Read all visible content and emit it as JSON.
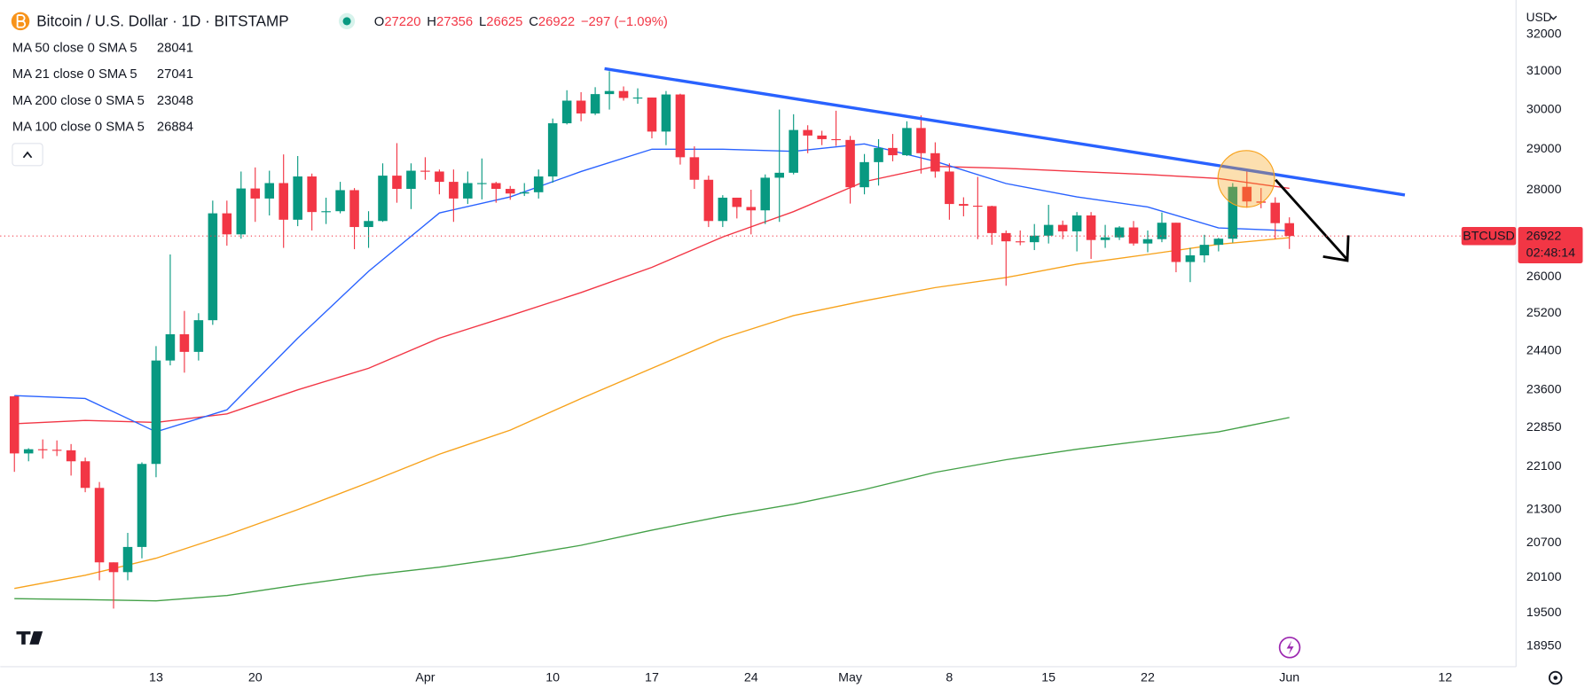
{
  "header": {
    "title": "Bitcoin / U.S. Dollar · 1D · BITSTAMP",
    "ohlc_labels": [
      "O",
      "H",
      "L",
      "C"
    ],
    "change": "−297 (−1.09%)",
    "currency": "USD"
  },
  "chart_data": {
    "type": "candlestick",
    "log": true,
    "grid": false,
    "price_line": true,
    "countdown": "02:48:14",
    "ylim": [
      18620,
      32950
    ],
    "yticks": [
      18950,
      19500,
      20100,
      20700,
      21300,
      22100,
      22850,
      23600,
      24400,
      25200,
      26000,
      27000,
      28000,
      29000,
      30000,
      31000,
      32000
    ],
    "xlim": [
      "03-02",
      "06-17"
    ],
    "xticks": [
      {
        "value": "03-13",
        "label": "13"
      },
      {
        "value": "03-20",
        "label": "20"
      },
      {
        "value": "04-01",
        "label": "Apr"
      },
      {
        "value": "04-10",
        "label": "10"
      },
      {
        "value": "04-17",
        "label": "17"
      },
      {
        "value": "04-24",
        "label": "24"
      },
      {
        "value": "05-01",
        "label": "May"
      },
      {
        "value": "05-08",
        "label": "8"
      },
      {
        "value": "05-15",
        "label": "15"
      },
      {
        "value": "05-22",
        "label": "22"
      },
      {
        "value": "06-01",
        "label": "Jun"
      },
      {
        "value": "06-12",
        "label": "12"
      }
    ],
    "x": [
      "03-03",
      "03-04",
      "03-05",
      "03-06",
      "03-07",
      "03-08",
      "03-09",
      "03-10",
      "03-11",
      "03-12",
      "03-13",
      "03-14",
      "03-15",
      "03-16",
      "03-17",
      "03-18",
      "03-19",
      "03-20",
      "03-21",
      "03-22",
      "03-23",
      "03-24",
      "03-25",
      "03-26",
      "03-27",
      "03-28",
      "03-29",
      "03-30",
      "03-31",
      "04-01",
      "04-02",
      "04-03",
      "04-04",
      "04-05",
      "04-06",
      "04-07",
      "04-08",
      "04-09",
      "04-10",
      "04-11",
      "04-12",
      "04-13",
      "04-14",
      "04-15",
      "04-16",
      "04-17",
      "04-18",
      "04-19",
      "04-20",
      "04-21",
      "04-22",
      "04-23",
      "04-24",
      "04-25",
      "04-26",
      "04-27",
      "04-28",
      "04-29",
      "04-30",
      "05-01",
      "05-02",
      "05-03",
      "05-04",
      "05-05",
      "05-06",
      "05-07",
      "05-08",
      "05-09",
      "05-10",
      "05-11",
      "05-12",
      "05-13",
      "05-14",
      "05-15",
      "05-16",
      "05-17",
      "05-18",
      "05-19",
      "05-20",
      "05-21",
      "05-22",
      "05-23",
      "05-24",
      "05-25",
      "05-26",
      "05-27",
      "05-28",
      "05-29",
      "05-30",
      "05-31",
      "06-01"
    ],
    "series": [
      {
        "name": "BTCUSD",
        "type": "candlestick",
        "up_color": "#089981",
        "down_color": "#f23645",
        "open": [
          23470,
          22350,
          22430,
          22420,
          22410,
          22200,
          21700,
          20360,
          20190,
          20630,
          22150,
          24200,
          24750,
          24380,
          25050,
          27450,
          26960,
          28040,
          27800,
          28170,
          27300,
          28330,
          27480,
          27500,
          28000,
          27130,
          27270,
          28350,
          28030,
          28470,
          28450,
          28200,
          27800,
          28170,
          28170,
          28030,
          27920,
          27950,
          28330,
          29650,
          30230,
          29900,
          30400,
          30480,
          30300,
          30310,
          29440,
          30390,
          28800,
          28250,
          27270,
          27820,
          27600,
          27520,
          28300,
          28420,
          29480,
          29340,
          29250,
          29230,
          28070,
          28680,
          29030,
          28850,
          29530,
          28900,
          28450,
          27670,
          27630,
          27620,
          26990,
          26800,
          26780,
          26930,
          27180,
          27030,
          27400,
          26830,
          26890,
          27120,
          26750,
          26850,
          27230,
          26330,
          26480,
          26720,
          26860,
          28080,
          27730,
          27700,
          27220
        ],
        "high": [
          23480,
          22450,
          22620,
          22600,
          22530,
          22270,
          21810,
          20360,
          20880,
          22180,
          24500,
          26500,
          25250,
          25200,
          27750,
          27750,
          28450,
          28550,
          28470,
          28870,
          28830,
          28400,
          27820,
          28200,
          28050,
          27500,
          28650,
          29150,
          28650,
          28800,
          28500,
          28500,
          28450,
          28770,
          28200,
          28100,
          28170,
          28500,
          29770,
          30500,
          30450,
          30580,
          31000,
          30600,
          30550,
          30310,
          30480,
          30410,
          29070,
          28350,
          27880,
          27820,
          28010,
          28380,
          30000,
          29880,
          29600,
          29460,
          29970,
          29330,
          28880,
          29250,
          29380,
          29700,
          29850,
          29170,
          28650,
          27830,
          28320,
          27630,
          27050,
          27050,
          27200,
          27650,
          27280,
          27480,
          27480,
          27180,
          27150,
          27270,
          27050,
          27470,
          27230,
          26650,
          26950,
          26880,
          28170,
          28450,
          28050,
          27830,
          27356
        ],
        "low": [
          22000,
          22200,
          22250,
          22300,
          21930,
          21620,
          20050,
          19570,
          20050,
          20430,
          21900,
          24100,
          23950,
          24200,
          24950,
          26700,
          26860,
          27250,
          27400,
          26650,
          27150,
          27050,
          27200,
          27450,
          26620,
          26650,
          27250,
          27700,
          27550,
          28250,
          27900,
          27250,
          27670,
          27780,
          27700,
          27770,
          27860,
          27800,
          28180,
          29620,
          29700,
          29860,
          30000,
          30230,
          30150,
          29270,
          29100,
          28620,
          28030,
          27130,
          27130,
          27330,
          26960,
          27200,
          27250,
          28380,
          28900,
          29100,
          29080,
          27680,
          27900,
          28110,
          28700,
          28830,
          28400,
          28300,
          27300,
          27380,
          26850,
          26720,
          25800,
          26710,
          26600,
          26750,
          26850,
          26570,
          26400,
          26650,
          26830,
          26700,
          26550,
          26780,
          26100,
          25880,
          26320,
          26570,
          26770,
          27580,
          27570,
          26850,
          26625
        ],
        "close": [
          22350,
          22430,
          22420,
          22410,
          22200,
          21700,
          20360,
          20190,
          20630,
          22150,
          24200,
          24750,
          24380,
          25050,
          27450,
          26960,
          28040,
          27800,
          28170,
          27300,
          28330,
          27480,
          27500,
          28000,
          27130,
          27270,
          28350,
          28030,
          28470,
          28450,
          28200,
          27800,
          28170,
          28170,
          28030,
          27920,
          27950,
          28330,
          29650,
          30230,
          29900,
          30400,
          30480,
          30300,
          30310,
          29440,
          30390,
          28800,
          28250,
          27270,
          27820,
          27600,
          27520,
          28300,
          28420,
          29480,
          29340,
          29250,
          29230,
          28070,
          28680,
          29030,
          28850,
          29530,
          28900,
          28450,
          27670,
          27630,
          27620,
          26990,
          26800,
          26780,
          26930,
          27180,
          27030,
          27400,
          26830,
          26890,
          27120,
          26750,
          26850,
          27230,
          26330,
          26480,
          26720,
          26860,
          28080,
          27730,
          27700,
          27220,
          26922
        ]
      },
      {
        "name": "MA 50 close 0 SMA 5",
        "type": "line",
        "color": "#f23645",
        "x": [
          "03-03",
          "03-08",
          "03-13",
          "03-18",
          "03-23",
          "03-28",
          "04-02",
          "04-07",
          "04-12",
          "04-17",
          "04-22",
          "04-27",
          "05-02",
          "05-07",
          "05-12",
          "05-17",
          "05-22",
          "05-27",
          "06-01"
        ],
        "values": [
          22925,
          22990,
          22950,
          23120,
          23600,
          24040,
          24670,
          25150,
          25650,
          26210,
          26900,
          27490,
          28206,
          28575,
          28530,
          28450,
          28380,
          28280,
          28041
        ]
      },
      {
        "name": "MA 21 close 0 SMA 5",
        "type": "line",
        "color": "#2962ff",
        "x": [
          "03-03",
          "03-08",
          "03-13",
          "03-18",
          "03-23",
          "03-28",
          "04-02",
          "04-07",
          "04-12",
          "04-17",
          "04-22",
          "04-27",
          "05-02",
          "05-07",
          "05-12",
          "05-17",
          "05-22",
          "05-27",
          "06-01"
        ],
        "values": [
          23485,
          23425,
          22766,
          23200,
          24670,
          26120,
          27460,
          27840,
          28450,
          28998,
          28998,
          28946,
          29130,
          28700,
          28160,
          27840,
          27600,
          27110,
          27041
        ]
      },
      {
        "name": "MA 200 close 0 SMA 5",
        "type": "line",
        "color": "#43a047",
        "x": [
          "03-03",
          "03-08",
          "03-13",
          "03-18",
          "03-23",
          "03-28",
          "04-02",
          "04-07",
          "04-12",
          "04-17",
          "04-22",
          "04-27",
          "05-02",
          "05-07",
          "05-12",
          "05-17",
          "05-22",
          "05-27",
          "06-01"
        ],
        "values": [
          19737,
          19720,
          19700,
          19790,
          19970,
          20135,
          20275,
          20450,
          20660,
          20930,
          21180,
          21400,
          21670,
          21990,
          22230,
          22430,
          22600,
          22766,
          23048
        ]
      },
      {
        "name": "MA 100 close 0 SMA 5",
        "type": "line",
        "color": "#f7a21b",
        "x": [
          "03-03",
          "03-08",
          "03-13",
          "03-18",
          "03-23",
          "03-28",
          "04-02",
          "04-07",
          "04-12",
          "04-17",
          "04-22",
          "04-27",
          "05-02",
          "05-07",
          "05-12",
          "05-17",
          "05-22",
          "05-27",
          "06-01"
        ],
        "values": [
          19910,
          20135,
          20432,
          20842,
          21300,
          21800,
          22336,
          22800,
          23425,
          24040,
          24670,
          25150,
          25470,
          25760,
          25980,
          26280,
          26500,
          26730,
          26884
        ]
      }
    ]
  }
}
